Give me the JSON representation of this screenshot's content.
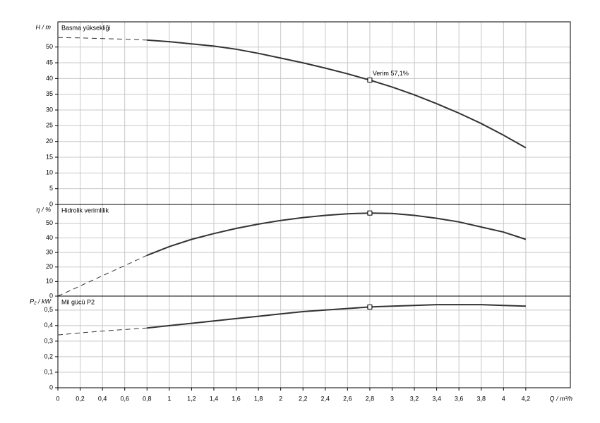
{
  "chart_data": [
    {
      "type": "line",
      "ylabel": "H / m",
      "panel_label": "Basma yüksekliği",
      "x": [
        0,
        0.2,
        0.4,
        0.6,
        0.8,
        1.0,
        1.2,
        1.4,
        1.6,
        1.8,
        2.0,
        2.2,
        2.4,
        2.6,
        2.8,
        3.0,
        3.2,
        3.4,
        3.6,
        3.8,
        4.0,
        4.2
      ],
      "series": [
        {
          "color": "#333333",
          "style": "dashed",
          "values": [
            53,
            52.9,
            52.7,
            52.5,
            52.2,
            null,
            null,
            null,
            null,
            null,
            null,
            null,
            null,
            null,
            null,
            null,
            null,
            null,
            null,
            null,
            null,
            null
          ]
        },
        {
          "color": "#333333",
          "style": "solid",
          "values": [
            null,
            null,
            null,
            null,
            52.2,
            51.7,
            51,
            50.3,
            49.3,
            48,
            46.5,
            45,
            43.3,
            41.5,
            39.5,
            37.3,
            34.8,
            32,
            29,
            25.7,
            22,
            18
          ]
        }
      ],
      "marker": {
        "x": 2.8,
        "y": 39.5
      },
      "annotation": "Verim  57,1%",
      "ylim": [
        0,
        58
      ],
      "yticks": [
        0,
        5,
        10,
        15,
        20,
        25,
        30,
        35,
        40,
        45,
        50
      ],
      "grid": true
    },
    {
      "type": "line",
      "ylabel": "η / %",
      "panel_label": "Hidrolik verimlilik",
      "x": [
        0,
        0.2,
        0.4,
        0.6,
        0.8,
        1.0,
        1.2,
        1.4,
        1.6,
        1.8,
        2.0,
        2.2,
        2.4,
        2.6,
        2.8,
        3.0,
        3.2,
        3.4,
        3.6,
        3.8,
        4.0,
        4.2
      ],
      "series": [
        {
          "color": "#333333",
          "style": "dashed",
          "values": [
            0,
            7,
            14,
            21,
            28,
            null,
            null,
            null,
            null,
            null,
            null,
            null,
            null,
            null,
            null,
            null,
            null,
            null,
            null,
            null,
            null,
            null
          ]
        },
        {
          "color": "#333333",
          "style": "solid",
          "values": [
            null,
            null,
            null,
            null,
            28,
            34,
            39,
            43,
            46.5,
            49.5,
            52,
            54,
            55.5,
            56.6,
            57.1,
            56.8,
            55.5,
            53.5,
            51,
            47.5,
            44,
            39
          ]
        }
      ],
      "marker": {
        "x": 2.8,
        "y": 57.1
      },
      "ylim": [
        0,
        63
      ],
      "yticks": [
        0,
        10,
        20,
        30,
        40,
        50
      ],
      "grid": true
    },
    {
      "type": "line",
      "ylabel": "P₂ / kW",
      "panel_label": "Mil gücü P2",
      "xlabel": "Q / m³/h",
      "x": [
        0,
        0.2,
        0.4,
        0.6,
        0.8,
        1.0,
        1.2,
        1.4,
        1.6,
        1.8,
        2.0,
        2.2,
        2.4,
        2.6,
        2.8,
        3.0,
        3.2,
        3.4,
        3.6,
        3.8,
        4.0,
        4.2
      ],
      "series": [
        {
          "color": "#333333",
          "style": "dashed",
          "values": [
            0.34,
            0.353,
            0.365,
            0.375,
            0.385,
            null,
            null,
            null,
            null,
            null,
            null,
            null,
            null,
            null,
            null,
            null,
            null,
            null,
            null,
            null,
            null,
            null
          ]
        },
        {
          "color": "#333333",
          "style": "solid",
          "values": [
            null,
            null,
            null,
            null,
            0.385,
            0.4,
            0.415,
            0.43,
            0.445,
            0.46,
            0.475,
            0.49,
            0.5,
            0.51,
            0.52,
            0.525,
            0.53,
            0.535,
            0.535,
            0.535,
            0.53,
            0.525
          ]
        }
      ],
      "marker": {
        "x": 2.8,
        "y": 0.52
      },
      "ylim": [
        0,
        0.59
      ],
      "yticks": [
        0,
        {
          "value": 0.1,
          "label": "0,1"
        },
        {
          "value": 0.2,
          "label": "0,2"
        },
        {
          "value": 0.3,
          "label": "0,3"
        },
        {
          "value": 0.4,
          "label": "0,4"
        },
        {
          "value": 0.5,
          "label": "0,5"
        }
      ],
      "xlim": [
        0,
        4.6
      ],
      "xticks": [
        0,
        {
          "value": 0.2,
          "label": "0,2"
        },
        {
          "value": 0.4,
          "label": "0,4"
        },
        {
          "value": 0.6,
          "label": "0,6"
        },
        {
          "value": 0.8,
          "label": "0,8"
        },
        1,
        {
          "value": 1.2,
          "label": "1,2"
        },
        {
          "value": 1.4,
          "label": "1,4"
        },
        {
          "value": 1.6,
          "label": "1,6"
        },
        {
          "value": 1.8,
          "label": "1,8"
        },
        2,
        {
          "value": 2.2,
          "label": "2,2"
        },
        {
          "value": 2.4,
          "label": "2,4"
        },
        {
          "value": 2.6,
          "label": "2,6"
        },
        {
          "value": 2.8,
          "label": "2,8"
        },
        3,
        {
          "value": 3.2,
          "label": "3,2"
        },
        {
          "value": 3.4,
          "label": "3,4"
        },
        {
          "value": 3.6,
          "label": "3,6"
        },
        {
          "value": 3.8,
          "label": "3,8"
        },
        4,
        {
          "value": 4.2,
          "label": "4,2"
        }
      ],
      "grid": true
    }
  ]
}
